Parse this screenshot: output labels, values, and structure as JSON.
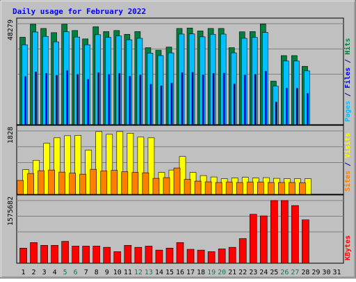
{
  "chart_data": [
    {
      "type": "bar",
      "title": "Daily usage for February 2022",
      "panel": "hits-files-pages",
      "ylabel_parts": [
        {
          "text": "Pages",
          "color": "#00c0ff"
        },
        {
          "text": " / ",
          "color": "#0000a0"
        },
        {
          "text": "Files",
          "color": "#0000ff"
        },
        {
          "text": " / ",
          "color": "#0000a0"
        },
        {
          "text": "Hits",
          "color": "#008040"
        }
      ],
      "ymax_label": "48279",
      "ymax": 48279,
      "x": [
        1,
        2,
        3,
        4,
        5,
        6,
        7,
        8,
        9,
        10,
        11,
        12,
        13,
        14,
        15,
        16,
        17,
        18,
        19,
        20,
        21,
        22,
        23,
        24,
        25,
        26,
        27,
        28,
        29,
        30,
        31
      ],
      "series": [
        {
          "name": "Hits",
          "color": "#008040",
          "values": [
            41800,
            48000,
            46000,
            44000,
            48000,
            45000,
            41000,
            46800,
            44500,
            45000,
            43200,
            44500,
            36800,
            35600,
            37100,
            46000,
            46200,
            44800,
            46000,
            46000,
            36800,
            44400,
            44500,
            48200,
            20800,
            33000,
            33000,
            27900,
            null,
            null,
            null
          ]
        },
        {
          "name": "Files",
          "color": "#0000ff",
          "values": [
            23000,
            25200,
            24500,
            23600,
            25800,
            24000,
            21600,
            24800,
            24000,
            24500,
            23100,
            23800,
            19300,
            18500,
            19800,
            24800,
            25000,
            23800,
            24500,
            24600,
            19400,
            23700,
            24000,
            25500,
            10800,
            17400,
            17400,
            14900,
            null,
            null,
            null
          ]
        },
        {
          "name": "Pages",
          "color": "#00c0ff",
          "values": [
            38200,
            44300,
            42200,
            39600,
            44400,
            41900,
            38200,
            43000,
            41700,
            42400,
            40600,
            41300,
            34200,
            33000,
            34300,
            43300,
            43400,
            42000,
            43200,
            43300,
            34300,
            41300,
            41700,
            44100,
            18400,
            30400,
            30400,
            25700,
            null,
            null,
            null
          ]
        }
      ]
    },
    {
      "type": "bar",
      "panel": "visits-sites",
      "ylabel_parts": [
        {
          "text": "Sites",
          "color": "#ff8000"
        },
        {
          "text": " / ",
          "color": "#0000a0"
        },
        {
          "text": "Visits",
          "color": "#ffff00"
        }
      ],
      "ymax_label": "1828",
      "ymax": 1828,
      "x": [
        1,
        2,
        3,
        4,
        5,
        6,
        7,
        8,
        9,
        10,
        11,
        12,
        13,
        14,
        15,
        16,
        17,
        18,
        19,
        20,
        21,
        22,
        23,
        24,
        25,
        26,
        27,
        28,
        29,
        30,
        31
      ],
      "series": [
        {
          "name": "Visits",
          "color": "#ffff00",
          "values": [
            710,
            980,
            1470,
            1630,
            1690,
            1700,
            1270,
            1810,
            1730,
            1810,
            1760,
            1650,
            1630,
            630,
            700,
            1090,
            630,
            540,
            500,
            450,
            470,
            490,
            470,
            480,
            460,
            450,
            450,
            450,
            null,
            null,
            null
          ]
        },
        {
          "name": "Sites",
          "color": "#ff8000",
          "values": [
            400,
            600,
            680,
            700,
            640,
            610,
            580,
            720,
            670,
            690,
            650,
            630,
            620,
            460,
            480,
            760,
            430,
            380,
            360,
            340,
            350,
            340,
            350,
            350,
            340,
            340,
            340,
            330,
            null,
            null,
            null
          ]
        }
      ]
    },
    {
      "type": "bar",
      "panel": "kbytes",
      "ylabel_parts": [
        {
          "text": "KBytes",
          "color": "#ff0000"
        }
      ],
      "ymax_label": "1575682",
      "ymax": 1575682,
      "x": [
        1,
        2,
        3,
        4,
        5,
        6,
        7,
        8,
        9,
        10,
        11,
        12,
        13,
        14,
        15,
        16,
        17,
        18,
        19,
        20,
        21,
        22,
        23,
        24,
        25,
        26,
        27,
        28,
        29,
        30,
        31
      ],
      "series": [
        {
          "name": "KBytes",
          "color": "#ff0000",
          "values": [
            380000,
            520000,
            450000,
            450000,
            550000,
            430000,
            430000,
            430000,
            400000,
            290000,
            450000,
            400000,
            430000,
            330000,
            380000,
            520000,
            350000,
            330000,
            290000,
            360000,
            400000,
            620000,
            1230000,
            1190000,
            1575682,
            1575682,
            1450000,
            1090000,
            null,
            null,
            null
          ]
        }
      ]
    }
  ],
  "xaxis": {
    "labels": [
      "1",
      "2",
      "3",
      "4",
      "5",
      "6",
      "7",
      "8",
      "9",
      "10",
      "11",
      "12",
      "13",
      "14",
      "15",
      "16",
      "17",
      "18",
      "19",
      "20",
      "21",
      "22",
      "23",
      "24",
      "25",
      "26",
      "27",
      "28",
      "29",
      "30",
      "31"
    ],
    "weekend": [
      5,
      6,
      12,
      13,
      19,
      20,
      26,
      27
    ],
    "weekday_color": "#000000",
    "weekend_color": "#00805c"
  },
  "colors": {
    "background": "#c0c0c0",
    "frame_light": "#ffffff",
    "frame_dark": "#808080",
    "title": "#0000ff",
    "gridline": "#808080",
    "bar_edge": "#000000"
  }
}
